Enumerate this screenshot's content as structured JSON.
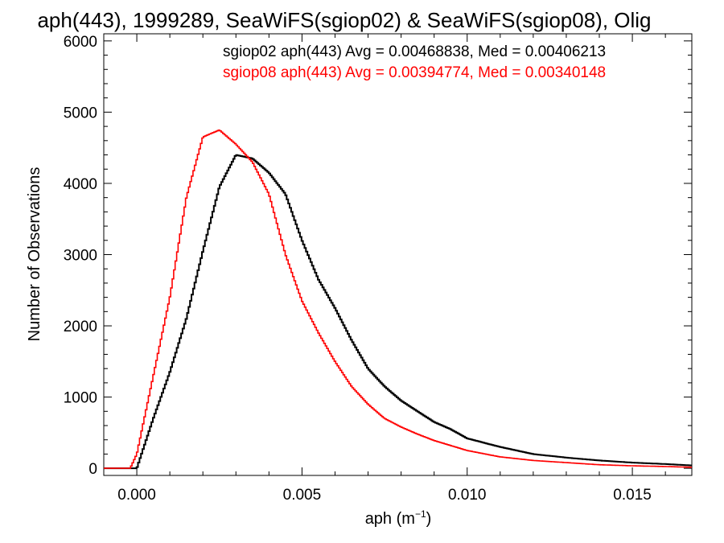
{
  "chart_data": {
    "type": "line",
    "title": "aph(443), 1999289, SeaWiFS(sgiop02) & SeaWiFS(sgiop08), Olig",
    "xlabel_main": "aph (m",
    "xlabel_sup": "−1",
    "xlabel_end": ")",
    "ylabel": "Number of Observations",
    "xlim": [
      -0.001,
      0.0168
    ],
    "ylim": [
      -100,
      6100
    ],
    "xticks": [
      0.0,
      0.005,
      0.01,
      0.015
    ],
    "xtick_labels": [
      "0.000",
      "0.005",
      "0.010",
      "0.015"
    ],
    "yticks": [
      0,
      1000,
      2000,
      3000,
      4000,
      5000,
      6000
    ],
    "ytick_labels": [
      "0",
      "1000",
      "2000",
      "3000",
      "4000",
      "5000",
      "6000"
    ],
    "grid": false,
    "legend_placement": "top-right",
    "annotations": [
      "sgiop02 aph(443) Avg = 0.00468838, Med = 0.00406213",
      "sgiop08 aph(443) Avg = 0.00394774, Med = 0.00340148"
    ],
    "series": [
      {
        "name": "sgiop02",
        "color": "#000000",
        "x": [
          -0.001,
          0.0,
          0.0005,
          0.001,
          0.0015,
          0.002,
          0.0025,
          0.003,
          0.0035,
          0.004,
          0.0045,
          0.005,
          0.0055,
          0.006,
          0.0065,
          0.007,
          0.0075,
          0.008,
          0.0085,
          0.009,
          0.0095,
          0.01,
          0.011,
          0.012,
          0.013,
          0.014,
          0.015,
          0.016,
          0.0168
        ],
        "y": [
          0,
          0,
          700,
          1350,
          2100,
          3050,
          3950,
          4400,
          4350,
          4150,
          3850,
          3200,
          2650,
          2250,
          1800,
          1400,
          1150,
          950,
          800,
          650,
          550,
          420,
          300,
          200,
          150,
          110,
          80,
          60,
          40
        ]
      },
      {
        "name": "sgiop08",
        "color": "#ff0000",
        "x": [
          -0.001,
          -0.0002,
          0.0,
          0.0005,
          0.001,
          0.0015,
          0.002,
          0.0025,
          0.003,
          0.0035,
          0.004,
          0.0045,
          0.005,
          0.0055,
          0.006,
          0.0065,
          0.007,
          0.0075,
          0.008,
          0.0085,
          0.009,
          0.0095,
          0.01,
          0.011,
          0.012,
          0.013,
          0.014,
          0.015,
          0.016,
          0.0168
        ],
        "y": [
          0,
          0,
          200,
          1300,
          2400,
          3800,
          4650,
          4750,
          4550,
          4300,
          3850,
          3000,
          2350,
          1900,
          1500,
          1150,
          900,
          700,
          580,
          480,
          390,
          320,
          250,
          160,
          110,
          80,
          50,
          35,
          25,
          15
        ]
      }
    ]
  }
}
